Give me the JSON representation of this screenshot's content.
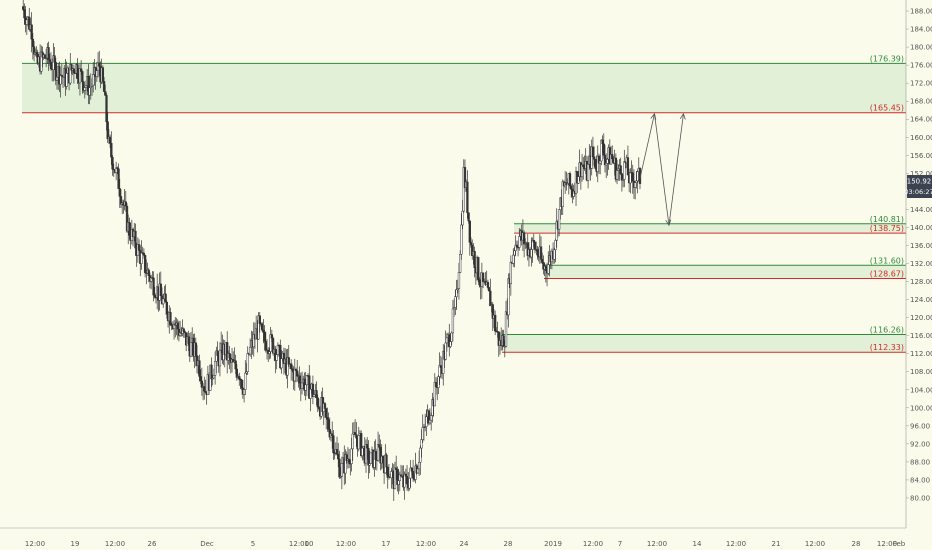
{
  "chart_data": {
    "type": "candlestick",
    "ylim": [
      76,
      190
    ],
    "y_ticks": [
      80,
      84,
      88,
      92,
      96,
      100,
      104,
      108,
      112,
      116,
      120,
      124,
      128,
      132,
      136,
      140,
      144,
      148,
      152,
      156,
      160,
      164,
      168,
      172,
      176,
      180,
      184,
      188
    ],
    "x_tick_labels": [
      "12:00",
      "19",
      "12:00",
      "26",
      "Dec",
      "5",
      "12:00",
      "10",
      "12:00",
      "17",
      "12:00",
      "24",
      "28",
      "2019",
      "12:00",
      "7",
      "12:00",
      "14",
      "12:00",
      "21",
      "12:00",
      "28",
      "12:00",
      "Feb"
    ],
    "price_path": [
      [
        0,
        189
      ],
      [
        4,
        184
      ],
      [
        6,
        176
      ],
      [
        10,
        178
      ],
      [
        14,
        175
      ],
      [
        18,
        173
      ],
      [
        22,
        176
      ],
      [
        24,
        174
      ],
      [
        26,
        172
      ],
      [
        28,
        171
      ],
      [
        30,
        173
      ],
      [
        32,
        176
      ],
      [
        34,
        170
      ],
      [
        36,
        158
      ],
      [
        40,
        150
      ],
      [
        44,
        140
      ],
      [
        48,
        135
      ],
      [
        52,
        130
      ],
      [
        56,
        126
      ],
      [
        60,
        122
      ],
      [
        64,
        118
      ],
      [
        68,
        115
      ],
      [
        72,
        112
      ],
      [
        74,
        108
      ],
      [
        76,
        104
      ],
      [
        80,
        110
      ],
      [
        84,
        113
      ],
      [
        86,
        110
      ],
      [
        90,
        108
      ],
      [
        92,
        104
      ],
      [
        94,
        112
      ],
      [
        98,
        118
      ],
      [
        100,
        115
      ],
      [
        104,
        114
      ],
      [
        106,
        112
      ],
      [
        108,
        110
      ],
      [
        112,
        108
      ],
      [
        116,
        106
      ],
      [
        120,
        104
      ],
      [
        124,
        100
      ],
      [
        126,
        97
      ],
      [
        128,
        95
      ],
      [
        130,
        90
      ],
      [
        132,
        86
      ],
      [
        134,
        88
      ],
      [
        136,
        90
      ],
      [
        138,
        94
      ],
      [
        140,
        92
      ],
      [
        142,
        90
      ],
      [
        144,
        88
      ],
      [
        146,
        89
      ],
      [
        148,
        90
      ],
      [
        150,
        88
      ],
      [
        152,
        86
      ],
      [
        154,
        84
      ],
      [
        156,
        85
      ],
      [
        158,
        83
      ],
      [
        160,
        84
      ],
      [
        162,
        86
      ],
      [
        164,
        88
      ],
      [
        166,
        94
      ],
      [
        168,
        98
      ],
      [
        170,
        101
      ],
      [
        172,
        106
      ],
      [
        174,
        110
      ],
      [
        176,
        114
      ],
      [
        178,
        118
      ],
      [
        180,
        124
      ],
      [
        182,
        140
      ],
      [
        183,
        152
      ],
      [
        184,
        148
      ],
      [
        186,
        136
      ],
      [
        188,
        132
      ],
      [
        190,
        128
      ],
      [
        192,
        126
      ],
      [
        194,
        124
      ],
      [
        196,
        118
      ],
      [
        198,
        114
      ],
      [
        200,
        116
      ],
      [
        202,
        130
      ],
      [
        204,
        136
      ],
      [
        206,
        138
      ],
      [
        208,
        137
      ],
      [
        210,
        135
      ],
      [
        212,
        136
      ],
      [
        214,
        134
      ],
      [
        216,
        131
      ],
      [
        218,
        132
      ],
      [
        220,
        135
      ],
      [
        222,
        142
      ],
      [
        224,
        148
      ],
      [
        226,
        150
      ],
      [
        228,
        148
      ],
      [
        230,
        152
      ],
      [
        232,
        154
      ],
      [
        234,
        152
      ],
      [
        236,
        156
      ],
      [
        238,
        154
      ],
      [
        240,
        158
      ],
      [
        242,
        155
      ],
      [
        244,
        156
      ],
      [
        246,
        153
      ],
      [
        248,
        152
      ],
      [
        250,
        154
      ],
      [
        252,
        150
      ],
      [
        254,
        151
      ],
      [
        256,
        150.9
      ]
    ],
    "zones": [
      {
        "top": 176.39,
        "bottom": 165.45,
        "top_label": "(176.39)",
        "bottom_label": "(165.45)"
      },
      {
        "top": 140.81,
        "bottom": 138.75,
        "top_label": "(140.81)",
        "bottom_label": "(138.75)"
      },
      {
        "top": 131.6,
        "bottom": 128.67,
        "top_label": "(131.60)",
        "bottom_label": "(128.67)"
      },
      {
        "top": 116.26,
        "bottom": 112.33,
        "top_label": "(116.26)",
        "bottom_label": "(112.33)"
      }
    ],
    "projection": [
      [
        256,
        150.9
      ],
      [
        262,
        165.2
      ],
      [
        268,
        140.5
      ],
      [
        274,
        165.2
      ]
    ],
    "current_price": "150.92",
    "countdown": "03:06:27"
  },
  "colors": {
    "background": "#fbfbec",
    "candle": "#333333",
    "zone_fill": "rgba(170,215,170,0.30)",
    "zone_top": "#2e8b3a",
    "zone_bottom": "#d42a2a",
    "price_tag": "#3c4250",
    "projection": "#555555",
    "axis_text": "#555555"
  }
}
